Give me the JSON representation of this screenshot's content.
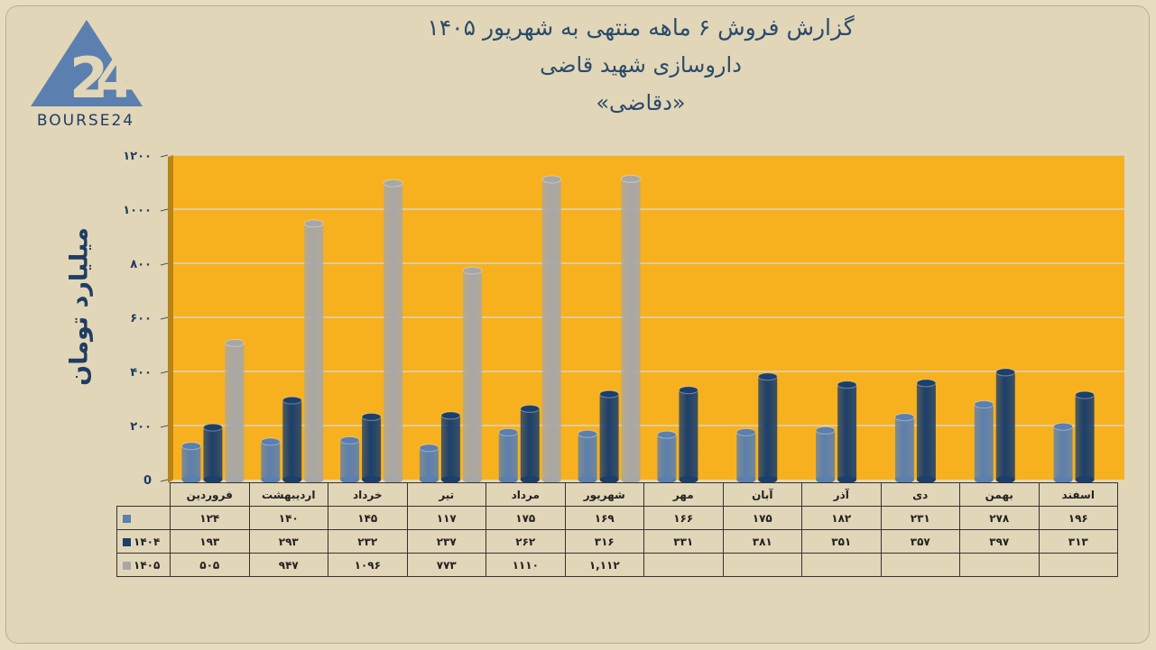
{
  "title": {
    "line1": "گزارش  فروش ۶ ماهه منتهی به شهریور ۱۴۰۵",
    "line2": "داروسازی شهید قاضی",
    "line3": "«دقاضی»"
  },
  "logo": {
    "text": "BOURSE24",
    "mark": "24"
  },
  "colors": {
    "plot_bg": "#f7b11e",
    "s1404a": "#5b7fae",
    "s1404": "#1c3f6b",
    "s1405": "#a7a7a7",
    "text": "#1f3c64"
  },
  "chart_data": {
    "type": "bar",
    "title": "گزارش  فروش ۶ ماهه منتهی به شهریور ۱۴۰۵",
    "ylabel": "میلیارد تومان",
    "ylim": [
      0,
      1200
    ],
    "yticks": [
      0,
      200,
      400,
      600,
      800,
      1000,
      1200
    ],
    "ytick_labels": [
      "0",
      "۲۰۰",
      "۴۰۰",
      "۶۰۰",
      "۸۰۰",
      "۱۰۰۰",
      "۱۲۰۰"
    ],
    "grid": true,
    "categories": [
      "فروردین",
      "اردیبهشت",
      "خرداد",
      "تیر",
      "مرداد",
      "شهریور",
      "مهر",
      "آبان",
      "آذر",
      "دی",
      "بهمن",
      "اسفند"
    ],
    "series": [
      {
        "name": "",
        "color": "#5b7fae",
        "values": [
          124,
          140,
          145,
          117,
          175,
          169,
          166,
          175,
          182,
          231,
          278,
          196
        ],
        "labels": [
          "۱۲۴",
          "۱۴۰",
          "۱۴۵",
          "۱۱۷",
          "۱۷۵",
          "۱۶۹",
          "۱۶۶",
          "۱۷۵",
          "۱۸۲",
          "۲۳۱",
          "۲۷۸",
          "۱۹۶"
        ]
      },
      {
        "name": "۱۴۰۴",
        "color": "#1c3f6b",
        "values": [
          193,
          293,
          232,
          237,
          262,
          316,
          331,
          381,
          351,
          357,
          397,
          313
        ],
        "labels": [
          "۱۹۳",
          "۲۹۳",
          "۲۳۲",
          "۲۳۷",
          "۲۶۲",
          "۳۱۶",
          "۳۳۱",
          "۳۸۱",
          "۳۵۱",
          "۳۵۷",
          "۳۹۷",
          "۳۱۳"
        ]
      },
      {
        "name": "۱۴۰۵",
        "color": "#a7a7a7",
        "values": [
          505,
          947,
          1096,
          773,
          1110,
          1112,
          null,
          null,
          null,
          null,
          null,
          null
        ],
        "labels": [
          "۵۰۵",
          "۹۴۷",
          "۱۰۹۶",
          "۷۷۳",
          "۱۱۱۰",
          "۱,۱۱۲",
          "",
          "",
          "",
          "",
          "",
          ""
        ]
      }
    ]
  }
}
